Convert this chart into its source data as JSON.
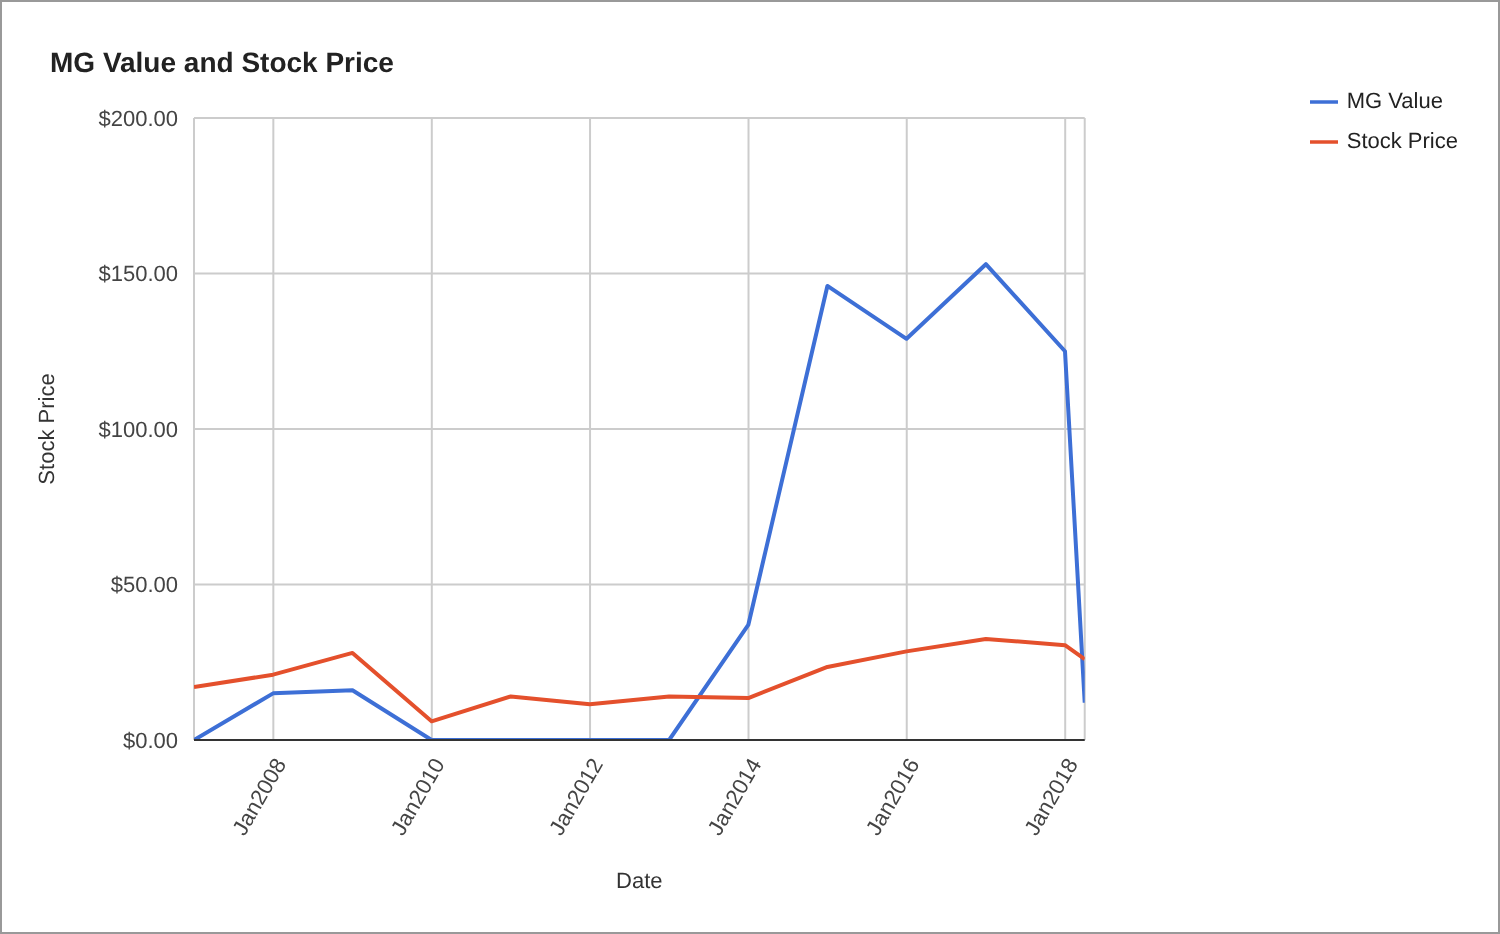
{
  "chart_data": {
    "type": "line",
    "title": "MG Value and Stock Price",
    "xlabel": "Date",
    "ylabel": "Stock Price",
    "x": [
      "2006-12-31",
      "2007-12-31",
      "2008-12-31",
      "2009-12-31",
      "2010-12-31",
      "2011-12-31",
      "2012-12-31",
      "2013-12-31",
      "2014-12-31",
      "2015-12-31",
      "2016-12-31",
      "2017-12-31",
      "2018-04-01"
    ],
    "series": [
      {
        "name": "MG Value",
        "color": "#3d6fd6",
        "values": [
          0,
          15,
          16,
          0,
          0,
          0,
          0,
          37,
          146,
          129,
          153,
          125,
          12
        ]
      },
      {
        "name": "Stock Price",
        "color": "#e4502c",
        "values": [
          17,
          21,
          28,
          6,
          14,
          11.5,
          14,
          13.5,
          23.5,
          28.5,
          32.5,
          30.5,
          26
        ]
      }
    ],
    "xlim": [
      "2006-12-31",
      "2018-04-01"
    ],
    "xticks": [
      {
        "value": "2008-01-01",
        "label": "Jan2008"
      },
      {
        "value": "2010-01-01",
        "label": "Jan2010"
      },
      {
        "value": "2012-01-01",
        "label": "Jan2012"
      },
      {
        "value": "2014-01-01",
        "label": "Jan2014"
      },
      {
        "value": "2016-01-01",
        "label": "Jan2016"
      },
      {
        "value": "2018-01-01",
        "label": "Jan2018"
      }
    ],
    "ylim": [
      0,
      200
    ],
    "yticks": [
      {
        "value": 0,
        "label": "$0.00"
      },
      {
        "value": 50,
        "label": "$50.00"
      },
      {
        "value": 100,
        "label": "$100.00"
      },
      {
        "value": 150,
        "label": "$150.00"
      },
      {
        "value": 200,
        "label": "$200.00"
      }
    ],
    "grid": true,
    "legend": "right",
    "marker": "none",
    "line_style": "solid"
  }
}
